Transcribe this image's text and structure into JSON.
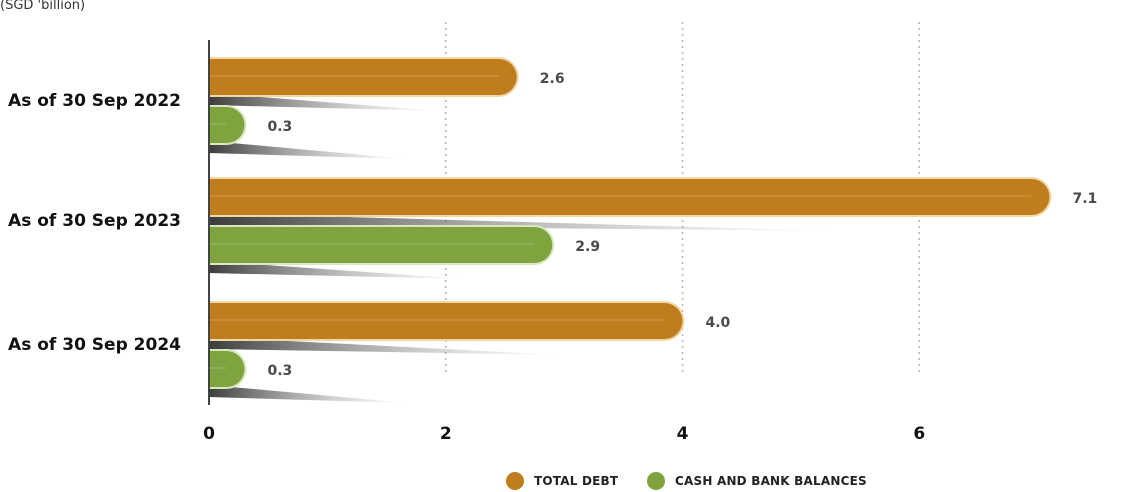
{
  "chart_data": {
    "type": "bar",
    "orientation": "horizontal",
    "unit_label": "(SGD 'billion)",
    "categories": [
      "As of 30 Sep 2022",
      "As of 30 Sep 2023",
      "As of 30 Sep 2024"
    ],
    "series": [
      {
        "name": "TOTAL DEBT",
        "values": [
          2.6,
          7.1,
          4.0
        ],
        "color": "#c07d1e"
      },
      {
        "name": "CASH AND BANK BALANCES",
        "values": [
          0.3,
          2.9,
          0.3
        ],
        "color": "#7fa33f"
      }
    ],
    "value_labels": [
      [
        "2.6",
        "7.1",
        "4.0"
      ],
      [
        "0.3",
        "2.9",
        "0.3"
      ]
    ],
    "xlim": [
      0,
      8
    ],
    "xticks": [
      "0",
      "2",
      "4",
      "6",
      "8"
    ],
    "grid": "vertical dotted",
    "legend_position": "bottom"
  }
}
